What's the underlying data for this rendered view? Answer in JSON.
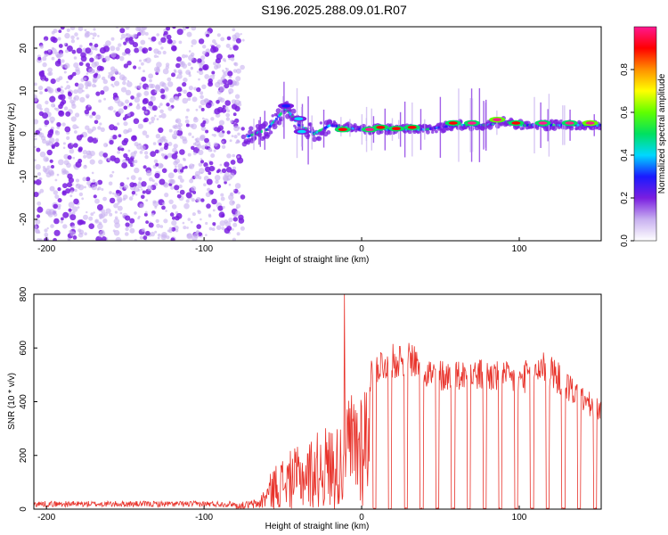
{
  "title": "S196.2025.288.09.01.R07",
  "colors": {
    "series": "#e8322a",
    "scatter": "#7a1ee0",
    "colorbar": [
      "#ffffff",
      "#c8b0f0",
      "#7a1ee0",
      "#1a1aff",
      "#00d8ff",
      "#00e060",
      "#60ff00",
      "#ffff00",
      "#ff9000",
      "#ff0000",
      "#ff1890"
    ]
  },
  "chart_data": [
    {
      "type": "heatmap",
      "title": "S196.2025.288.09.01.R07",
      "xlabel": "Height of straight line (km)",
      "ylabel": "Frequency (Hz)",
      "xlim": [
        -208,
        152
      ],
      "ylim": [
        -25,
        25
      ],
      "xticks": [
        -200,
        -100,
        0,
        100
      ],
      "yticks": [
        -20,
        -10,
        0,
        10,
        20
      ],
      "colorbar": {
        "label": "Normalized spectral amplitude",
        "range": [
          0,
          1
        ],
        "ticks": [
          0.0,
          0.2,
          0.4,
          0.6,
          0.8
        ]
      },
      "noise_region_x": [
        -208,
        -75
      ],
      "signal_track": {
        "x": [
          -75,
          -60,
          -48,
          -40,
          -30,
          -20,
          0,
          20,
          40,
          60,
          80,
          90,
          100,
          120,
          140,
          152
        ],
        "y": [
          -1,
          1,
          6,
          2,
          0,
          2,
          1,
          1,
          1,
          2,
          2,
          3,
          2,
          2,
          2,
          2
        ]
      },
      "peaks": [
        {
          "x": -48,
          "y": 6.5,
          "amp": 0.3
        },
        {
          "x": -40,
          "y": 3.5,
          "amp": 0.4
        },
        {
          "x": -38,
          "y": 0.5,
          "amp": 0.4
        },
        {
          "x": -12,
          "y": 1.0,
          "amp": 0.9
        },
        {
          "x": 5,
          "y": 1.0,
          "amp": 0.95
        },
        {
          "x": 12,
          "y": 1.5,
          "amp": 0.9
        },
        {
          "x": 22,
          "y": 1.2,
          "amp": 0.85
        },
        {
          "x": 32,
          "y": 1.5,
          "amp": 0.9
        },
        {
          "x": 58,
          "y": 2.5,
          "amp": 0.9
        },
        {
          "x": 70,
          "y": 2.5,
          "amp": 0.95
        },
        {
          "x": 86,
          "y": 3.3,
          "amp": 1.0
        },
        {
          "x": 98,
          "y": 2.5,
          "amp": 0.85
        },
        {
          "x": 115,
          "y": 2.5,
          "amp": 0.95
        },
        {
          "x": 132,
          "y": 2.5,
          "amp": 0.95
        },
        {
          "x": 145,
          "y": 2.5,
          "amp": 1.0
        }
      ]
    },
    {
      "type": "line",
      "xlabel": "Height of straight line (km)",
      "ylabel": "SNR (10 * v/v)",
      "xlim": [
        -208,
        152
      ],
      "ylim": [
        0,
        800
      ],
      "xticks": [
        -200,
        -100,
        0,
        100
      ],
      "yticks": [
        0,
        200,
        400,
        600,
        800
      ],
      "envelope": {
        "x": [
          -208,
          -80,
          -65,
          -55,
          -45,
          -35,
          -25,
          -15,
          -10,
          0,
          10,
          20,
          30,
          45,
          60,
          80,
          100,
          115,
          130,
          140,
          152
        ],
        "y": [
          22,
          22,
          40,
          170,
          220,
          250,
          310,
          320,
          420,
          500,
          600,
          620,
          640,
          560,
          560,
          560,
          540,
          600,
          520,
          460,
          400
        ]
      },
      "spike": {
        "x": -11,
        "y": 800
      },
      "dropouts_x": [
        8,
        18,
        28,
        38,
        48,
        58,
        68,
        78,
        88,
        98,
        108,
        118,
        128,
        138,
        148
      ]
    }
  ]
}
